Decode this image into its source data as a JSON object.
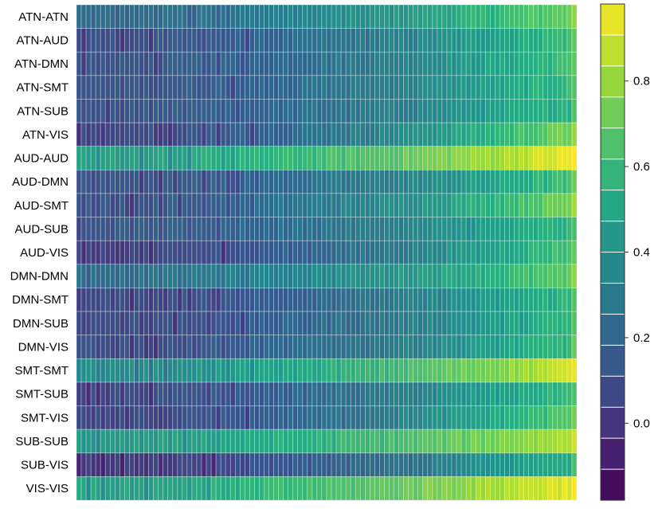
{
  "chart_data": {
    "type": "heatmap",
    "title": "",
    "xlabel": "",
    "ylabel": "",
    "rows": [
      "ATN-ATN",
      "ATN-AUD",
      "ATN-DMN",
      "ATN-SMT",
      "ATN-SUB",
      "ATN-VIS",
      "AUD-AUD",
      "AUD-DMN",
      "AUD-SMT",
      "AUD-SUB",
      "AUD-VIS",
      "DMN-DMN",
      "DMN-SMT",
      "DMN-SUB",
      "DMN-VIS",
      "SMT-SMT",
      "SMT-SUB",
      "SMT-VIS",
      "SUB-SUB",
      "SUB-VIS",
      "VIS-VIS"
    ],
    "n_columns": 104,
    "colormap": "viridis",
    "color_range": [
      -0.18,
      0.98
    ],
    "colorbar_ticks": [
      0.0,
      0.2,
      0.4,
      0.6,
      0.8
    ],
    "colorbar_tick_labels": [
      "0.0",
      "0.2",
      "0.4",
      "0.6",
      "0.8"
    ],
    "row_profiles": [
      {
        "row": "ATN-ATN",
        "start": 0.22,
        "end": 0.72
      },
      {
        "row": "ATN-AUD",
        "start": 0.1,
        "end": 0.62
      },
      {
        "row": "ATN-DMN",
        "start": 0.12,
        "end": 0.62
      },
      {
        "row": "ATN-SMT",
        "start": 0.12,
        "end": 0.6
      },
      {
        "row": "ATN-SUB",
        "start": 0.12,
        "end": 0.58
      },
      {
        "row": "ATN-VIS",
        "start": 0.08,
        "end": 0.75
      },
      {
        "row": "AUD-AUD",
        "start": 0.48,
        "end": 0.95
      },
      {
        "row": "AUD-DMN",
        "start": 0.12,
        "end": 0.62
      },
      {
        "row": "AUD-SMT",
        "start": 0.12,
        "end": 0.75
      },
      {
        "row": "AUD-SUB",
        "start": 0.14,
        "end": 0.58
      },
      {
        "row": "AUD-VIS",
        "start": 0.04,
        "end": 0.65
      },
      {
        "row": "DMN-DMN",
        "start": 0.25,
        "end": 0.68
      },
      {
        "row": "DMN-SMT",
        "start": 0.08,
        "end": 0.58
      },
      {
        "row": "DMN-SUB",
        "start": 0.08,
        "end": 0.58
      },
      {
        "row": "DMN-VIS",
        "start": 0.1,
        "end": 0.6
      },
      {
        "row": "SMT-SMT",
        "start": 0.38,
        "end": 0.9
      },
      {
        "row": "SMT-SUB",
        "start": 0.08,
        "end": 0.6
      },
      {
        "row": "SMT-VIS",
        "start": 0.06,
        "end": 0.68
      },
      {
        "row": "SUB-SUB",
        "start": 0.45,
        "end": 0.85
      },
      {
        "row": "SUB-VIS",
        "start": 0.02,
        "end": 0.55
      },
      {
        "row": "VIS-VIS",
        "start": 0.5,
        "end": 0.95
      }
    ]
  }
}
